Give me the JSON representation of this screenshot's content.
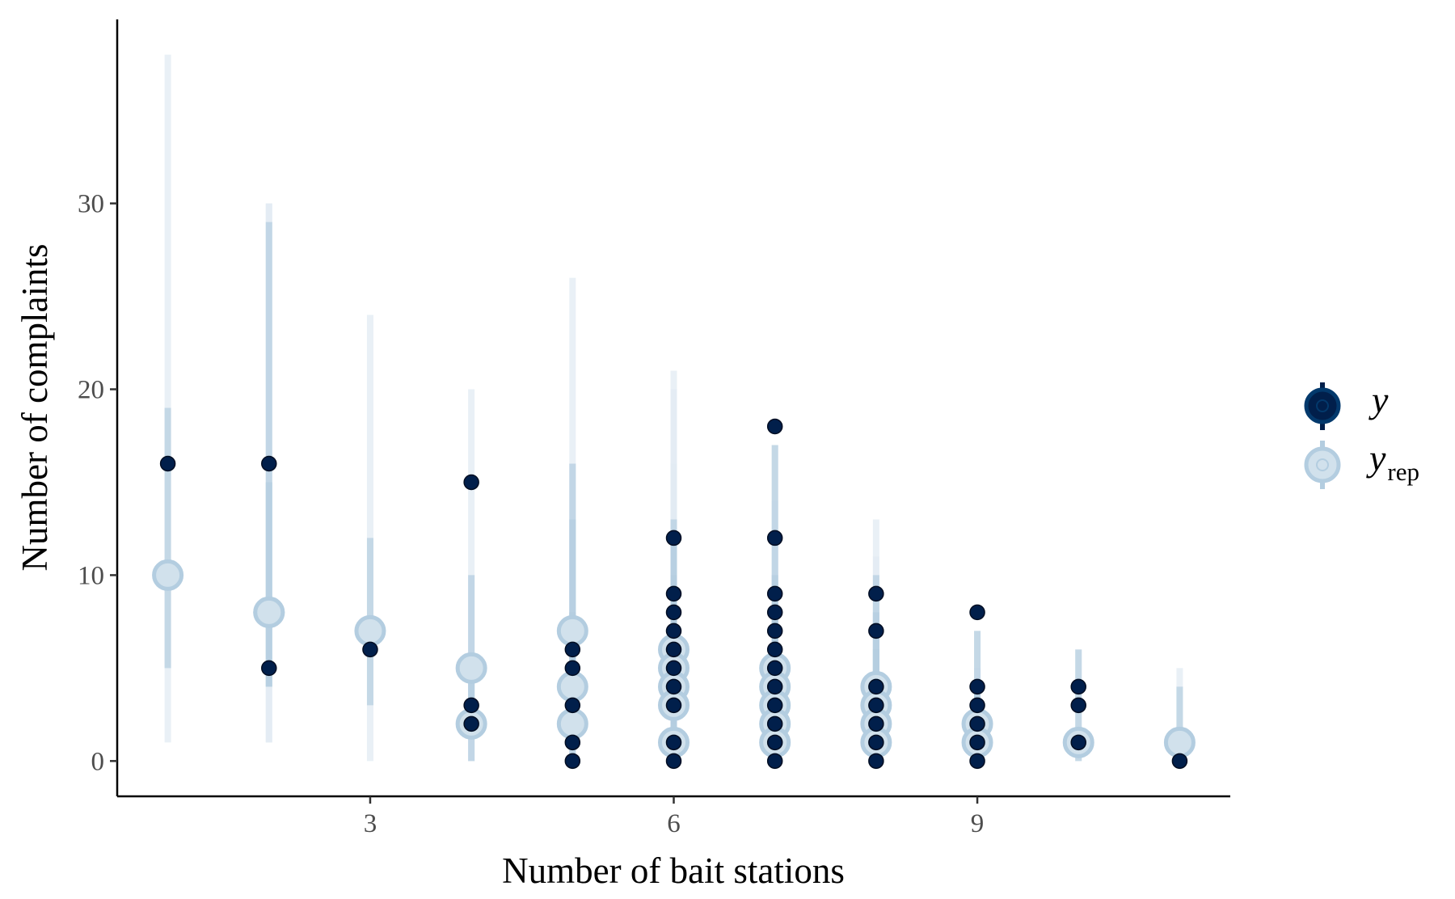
{
  "chart_data": {
    "type": "scatter",
    "xlabel": "Number of bait stations",
    "ylabel": "Number of complaints",
    "xlim": [
      0.5,
      11.5
    ],
    "ylim": [
      -1.9,
      39.9
    ],
    "x_ticks": [
      3,
      6,
      9
    ],
    "y_ticks": [
      0,
      10,
      20,
      30
    ],
    "grid": false,
    "legend_position": "right",
    "colors": {
      "y_point": "#011f4b",
      "yrep_fill": "#d1e1ec",
      "yrep_stroke": "#b3cde0",
      "inner_interval": "#b3cde0",
      "outer_interval": "#e2ebf3"
    },
    "legend": {
      "y_label": "y",
      "yrep_label": "y",
      "yrep_sub": "rep"
    },
    "yrep_intervals": [
      {
        "x": 1,
        "median": 10,
        "inner": [
          5,
          19
        ],
        "outer": [
          1,
          38
        ]
      },
      {
        "x": 2,
        "median": 8,
        "inner": [
          4,
          29
        ],
        "outer": [
          1,
          30
        ]
      },
      {
        "x": 2,
        "median": 8,
        "inner": [
          4,
          15
        ],
        "outer": [
          1,
          30
        ]
      },
      {
        "x": 3,
        "median": 7,
        "inner": [
          3,
          12
        ],
        "outer": [
          0,
          24
        ]
      },
      {
        "x": 4,
        "median": 5,
        "inner": [
          2,
          10
        ],
        "outer": [
          0,
          20
        ]
      },
      {
        "x": 4,
        "median": 2,
        "inner": [
          0,
          5
        ],
        "outer": [
          0,
          10
        ]
      },
      {
        "x": 5,
        "median": 7,
        "inner": [
          2,
          16
        ],
        "outer": [
          0,
          26
        ]
      },
      {
        "x": 5,
        "median": 4,
        "inner": [
          1,
          13
        ],
        "outer": [
          0,
          16
        ]
      },
      {
        "x": 5,
        "median": 2,
        "inner": [
          0,
          8
        ],
        "outer": [
          0,
          13
        ]
      },
      {
        "x": 6,
        "median": 6,
        "inner": [
          2,
          13
        ],
        "outer": [
          0,
          21
        ]
      },
      {
        "x": 6,
        "median": 5,
        "inner": [
          2,
          12
        ],
        "outer": [
          0,
          20
        ]
      },
      {
        "x": 6,
        "median": 4,
        "inner": [
          1,
          10
        ],
        "outer": [
          0,
          16
        ]
      },
      {
        "x": 6,
        "median": 3,
        "inner": [
          1,
          8
        ],
        "outer": [
          0,
          13
        ]
      },
      {
        "x": 6,
        "median": 1,
        "inner": [
          0,
          4
        ],
        "outer": [
          0,
          7
        ]
      },
      {
        "x": 7,
        "median": 5,
        "inner": [
          2,
          17
        ],
        "outer": [
          0,
          17
        ]
      },
      {
        "x": 7,
        "median": 4,
        "inner": [
          1,
          10
        ],
        "outer": [
          0,
          14
        ]
      },
      {
        "x": 7,
        "median": 3,
        "inner": [
          1,
          8
        ],
        "outer": [
          0,
          12
        ]
      },
      {
        "x": 7,
        "median": 2,
        "inner": [
          0,
          6
        ],
        "outer": [
          0,
          10
        ]
      },
      {
        "x": 7,
        "median": 1,
        "inner": [
          0,
          4
        ],
        "outer": [
          0,
          7
        ]
      },
      {
        "x": 8,
        "median": 4,
        "inner": [
          1,
          10
        ],
        "outer": [
          0,
          13
        ]
      },
      {
        "x": 8,
        "median": 3,
        "inner": [
          1,
          8
        ],
        "outer": [
          0,
          11
        ]
      },
      {
        "x": 8,
        "median": 2,
        "inner": [
          0,
          6
        ],
        "outer": [
          0,
          9
        ]
      },
      {
        "x": 8,
        "median": 1,
        "inner": [
          0,
          4
        ],
        "outer": [
          0,
          6
        ]
      },
      {
        "x": 9,
        "median": 2,
        "inner": [
          0,
          7
        ],
        "outer": [
          0,
          7
        ]
      },
      {
        "x": 9,
        "median": 1,
        "inner": [
          0,
          4
        ],
        "outer": [
          0,
          5
        ]
      },
      {
        "x": 10,
        "median": 1,
        "inner": [
          0,
          6
        ],
        "outer": [
          0,
          6
        ]
      },
      {
        "x": 11,
        "median": 1,
        "inner": [
          0,
          4
        ],
        "outer": [
          0,
          5
        ]
      }
    ],
    "y_points": [
      {
        "x": 1,
        "y": 16
      },
      {
        "x": 2,
        "y": 16
      },
      {
        "x": 2,
        "y": 5
      },
      {
        "x": 3,
        "y": 6
      },
      {
        "x": 4,
        "y": 15
      },
      {
        "x": 4,
        "y": 3
      },
      {
        "x": 4,
        "y": 2
      },
      {
        "x": 5,
        "y": 6
      },
      {
        "x": 5,
        "y": 5
      },
      {
        "x": 5,
        "y": 3
      },
      {
        "x": 5,
        "y": 1
      },
      {
        "x": 5,
        "y": 0
      },
      {
        "x": 6,
        "y": 12
      },
      {
        "x": 6,
        "y": 9
      },
      {
        "x": 6,
        "y": 8
      },
      {
        "x": 6,
        "y": 7
      },
      {
        "x": 6,
        "y": 6
      },
      {
        "x": 6,
        "y": 5
      },
      {
        "x": 6,
        "y": 4
      },
      {
        "x": 6,
        "y": 3
      },
      {
        "x": 6,
        "y": 1
      },
      {
        "x": 6,
        "y": 0
      },
      {
        "x": 7,
        "y": 18
      },
      {
        "x": 7,
        "y": 12
      },
      {
        "x": 7,
        "y": 9
      },
      {
        "x": 7,
        "y": 8
      },
      {
        "x": 7,
        "y": 7
      },
      {
        "x": 7,
        "y": 6
      },
      {
        "x": 7,
        "y": 5
      },
      {
        "x": 7,
        "y": 4
      },
      {
        "x": 7,
        "y": 3
      },
      {
        "x": 7,
        "y": 2
      },
      {
        "x": 7,
        "y": 1
      },
      {
        "x": 7,
        "y": 0
      },
      {
        "x": 8,
        "y": 9
      },
      {
        "x": 8,
        "y": 7
      },
      {
        "x": 8,
        "y": 4
      },
      {
        "x": 8,
        "y": 3
      },
      {
        "x": 8,
        "y": 2
      },
      {
        "x": 8,
        "y": 1
      },
      {
        "x": 8,
        "y": 0
      },
      {
        "x": 9,
        "y": 8
      },
      {
        "x": 9,
        "y": 4
      },
      {
        "x": 9,
        "y": 3
      },
      {
        "x": 9,
        "y": 2
      },
      {
        "x": 9,
        "y": 1
      },
      {
        "x": 9,
        "y": 0
      },
      {
        "x": 10,
        "y": 4
      },
      {
        "x": 10,
        "y": 3
      },
      {
        "x": 10,
        "y": 1
      },
      {
        "x": 11,
        "y": 0
      }
    ]
  }
}
